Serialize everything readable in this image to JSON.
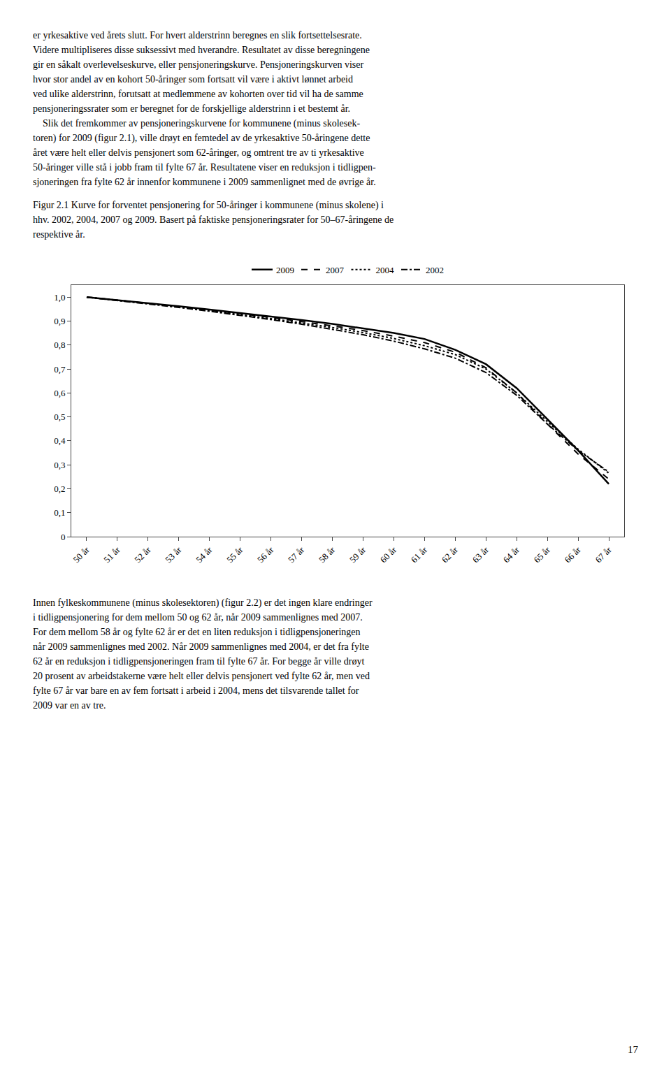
{
  "text_before": [
    "er yrkesaktive ved årets slutt. For hvert alderstrinn beregnes en slik fortsettelsesrate.",
    "Videre multipliseres disse suksessivt med hverandre. Resultatet av disse beregningene",
    "gir en såkalt overlevelseskurve, eller pensjoneringskurve. Pensjoneringskurven viser",
    "hvor stor andel av en kohort 50-åringer som fortsatt vil være i aktivt lønnet arbeid",
    "ved ulike alderstrinn, forutsatt at medlemmene av kohorten over tid vil ha de samme",
    "pensjoneringssrater som er beregnet for de forskjellige alderstrinn i et bestemt år.",
    "    Slik det fremkommer av pensjoneringskurvene for kommunene (minus skolesek-",
    "toren) for 2009 (figur 2.1), ville drøyt en femtedel av de yrkesaktive 50-åringene dette",
    "året være helt eller delvis pensjonert som 62-åringer, og omtrent tre av ti yrkesaktive",
    "50-åringer ville stå i jobb fram til fylte 67 år. Resultatene viser en reduksjon i tidligpen-",
    "sjoneringen fra fylte 62 år innenfor kommunene i 2009 sammenlignet med de øvrige år."
  ],
  "chart_data": {
    "type": "line",
    "title": [
      "Figur 2.1 Kurve for forventet pensjonering for 50-åringer i kommunene (minus skolene) i",
      "hhv. 2002, 2004, 2007 og 2009. Basert på faktiske pensjoneringsrater for 50–67-åringene de",
      "respektive år."
    ],
    "x": [
      50,
      51,
      52,
      53,
      54,
      55,
      56,
      57,
      58,
      59,
      60,
      61,
      62,
      63,
      64,
      65,
      66,
      67
    ],
    "xlim": [
      49.5,
      67.5
    ],
    "xticks": [
      {
        "value": 50,
        "label": "50 år"
      },
      {
        "value": 51,
        "label": "51 år"
      },
      {
        "value": 52,
        "label": "52 år"
      },
      {
        "value": 53,
        "label": "53 år"
      },
      {
        "value": 54,
        "label": "54 år"
      },
      {
        "value": 55,
        "label": "55 år"
      },
      {
        "value": 56,
        "label": "56 år"
      },
      {
        "value": 57,
        "label": "57 år"
      },
      {
        "value": 58,
        "label": "58 år"
      },
      {
        "value": 59,
        "label": "59 år"
      },
      {
        "value": 60,
        "label": "60 år"
      },
      {
        "value": 61,
        "label": "61 år"
      },
      {
        "value": 62,
        "label": "62 år"
      },
      {
        "value": 63,
        "label": "63 år"
      },
      {
        "value": 64,
        "label": "64 år"
      },
      {
        "value": 65,
        "label": "65 år"
      },
      {
        "value": 66,
        "label": "66 år"
      },
      {
        "value": 67,
        "label": "67 år"
      }
    ],
    "ylim": [
      0,
      1.05
    ],
    "yticks": [
      0,
      {
        "value": 0.1,
        "label": "0,1"
      },
      {
        "value": 0.2,
        "label": "0,2"
      },
      {
        "value": 0.3,
        "label": "0,3"
      },
      {
        "value": 0.4,
        "label": "0,4"
      },
      {
        "value": 0.5,
        "label": "0,5"
      },
      {
        "value": 0.6,
        "label": "0,6"
      },
      {
        "value": 0.7,
        "label": "0,7"
      },
      {
        "value": 0.8,
        "label": "0,8"
      },
      {
        "value": 0.9,
        "label": "0,9"
      },
      {
        "value": 1.0,
        "label": "1,0"
      }
    ],
    "grid": false,
    "legend": "top",
    "series": [
      {
        "name": "2009",
        "color": "#000000",
        "line_style": "solid",
        "values": [
          1.0,
          0.988,
          0.975,
          0.962,
          0.948,
          0.934,
          0.919,
          0.904,
          0.888,
          0.87,
          0.85,
          0.825,
          0.78,
          0.72,
          0.62,
          0.49,
          0.36,
          0.22
        ]
      },
      {
        "name": "2007",
        "color": "#000000",
        "line_style": "dash",
        "values": [
          1.0,
          0.988,
          0.974,
          0.96,
          0.946,
          0.931,
          0.915,
          0.898,
          0.88,
          0.86,
          0.837,
          0.81,
          0.77,
          0.705,
          0.6,
          0.47,
          0.345,
          0.24
        ]
      },
      {
        "name": "2004",
        "color": "#000000",
        "line_style": "dot",
        "values": [
          1.0,
          0.987,
          0.973,
          0.958,
          0.943,
          0.927,
          0.91,
          0.892,
          0.873,
          0.852,
          0.827,
          0.797,
          0.76,
          0.7,
          0.6,
          0.48,
          0.365,
          0.265
        ]
      },
      {
        "name": "2002",
        "color": "#000000",
        "line_style": "dashdot",
        "values": [
          1.0,
          0.986,
          0.972,
          0.957,
          0.941,
          0.924,
          0.906,
          0.887,
          0.866,
          0.843,
          0.816,
          0.784,
          0.745,
          0.685,
          0.59,
          0.47,
          0.36,
          0.27
        ]
      }
    ]
  },
  "text_after": [
    "Innen fylkeskommunene (minus skolesektoren) (figur 2.2) er det ingen klare endringer",
    "i tidligpensjonering for dem mellom 50 og 62 år, når 2009 sammenlignes med 2007.",
    "For dem mellom 58 år og fylte 62 år er det en liten reduksjon i tidligpensjoneringen",
    "når 2009 sammenlignes med 2002. Når 2009 sammenlignes med 2004, er det fra fylte",
    "62 år en reduksjon i tidligpensjoneringen fram til fylte 67 år. For begge år ville drøyt",
    "20 prosent av arbeidstakerne være helt eller delvis pensjonert ved fylte 62 år, men ved",
    "fylte 67 år var bare en av fem fortsatt i arbeid i 2004, mens det tilsvarende tallet for",
    "2009 var en av tre."
  ],
  "page_number": "17"
}
